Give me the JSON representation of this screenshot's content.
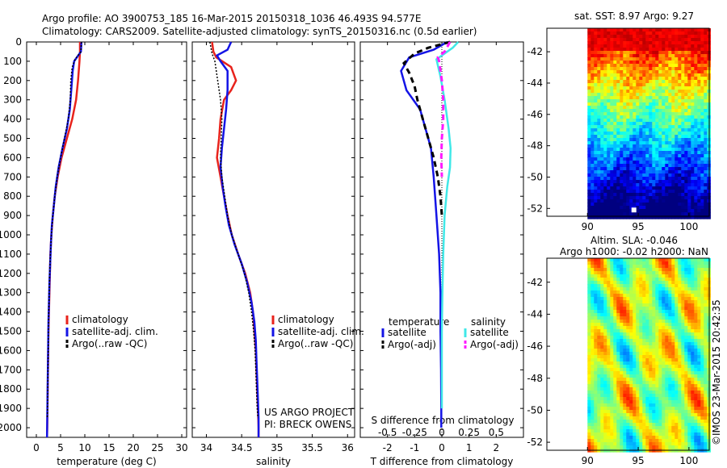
{
  "header": {
    "line1": "Argo profile: AO 3900753_185 16-Mar-2015 20150318_1036 46.493S 94.577E",
    "line2": "Climatology: CARS2009. Satellite-adjusted climatology: synTS_20150316.nc (0.5d earlier)"
  },
  "colors": {
    "climatology": "#e8231c",
    "satellite": "#1414e6",
    "argo": "#000000",
    "satellite_s": "#40e8e8",
    "argo_s": "#ff1aff"
  },
  "chart_data": [
    {
      "type": "line",
      "name": "temperature-panel",
      "xlabel": "temperature (deg C)",
      "xticks": [
        "0",
        "5",
        "10",
        "15",
        "20",
        "25",
        "30"
      ],
      "xlim": [
        -2,
        31
      ],
      "ylim": [
        0,
        2050
      ],
      "yticks": [
        "0",
        "100",
        "200",
        "300",
        "400",
        "500",
        "600",
        "700",
        "800",
        "900",
        "1000",
        "1100",
        "1200",
        "1300",
        "1400",
        "1500",
        "1600",
        "1700",
        "1800",
        "1900",
        "2000"
      ],
      "legend": [
        "climatology",
        "satellite-adj. clim.",
        "Argo(..raw -QC)"
      ],
      "series": [
        {
          "name": "climatology",
          "color": "#e8231c",
          "points": [
            [
              9.0,
              0
            ],
            [
              9.0,
              50
            ],
            [
              8.9,
              100
            ],
            [
              8.6,
              200
            ],
            [
              8.2,
              300
            ],
            [
              7.4,
              400
            ],
            [
              6.3,
              500
            ],
            [
              5.2,
              600
            ],
            [
              4.4,
              700
            ],
            [
              3.8,
              800
            ],
            [
              3.4,
              900
            ],
            [
              3.1,
              1000
            ],
            [
              2.9,
              1100
            ],
            [
              2.8,
              1200
            ],
            [
              2.7,
              1300
            ],
            [
              2.6,
              1400
            ],
            [
              2.5,
              1500
            ],
            [
              2.45,
              1600
            ],
            [
              2.4,
              1700
            ],
            [
              2.35,
              1800
            ],
            [
              2.3,
              1900
            ],
            [
              2.25,
              2000
            ],
            [
              2.2,
              2050
            ]
          ]
        },
        {
          "name": "satellite-adj. clim.",
          "color": "#1414e6",
          "points": [
            [
              9.3,
              0
            ],
            [
              9.2,
              50
            ],
            [
              7.8,
              100
            ],
            [
              7.5,
              150
            ],
            [
              7.2,
              250
            ],
            [
              6.9,
              350
            ],
            [
              6.3,
              450
            ],
            [
              5.4,
              550
            ],
            [
              4.6,
              650
            ],
            [
              4.0,
              750
            ],
            [
              3.6,
              850
            ],
            [
              3.2,
              950
            ],
            [
              3.0,
              1050
            ],
            [
              2.85,
              1150
            ],
            [
              2.7,
              1250
            ],
            [
              2.6,
              1350
            ],
            [
              2.5,
              1450
            ],
            [
              2.45,
              1550
            ],
            [
              2.4,
              1650
            ],
            [
              2.35,
              1750
            ],
            [
              2.3,
              1850
            ],
            [
              2.25,
              1950
            ],
            [
              2.2,
              2050
            ]
          ]
        },
        {
          "name": "Argo(..raw -QC)",
          "color": "#000000",
          "points": [
            [
              9.3,
              0
            ],
            [
              9.2,
              50
            ],
            [
              8.0,
              90
            ],
            [
              7.4,
              130
            ],
            [
              7.1,
              200
            ],
            [
              7.0,
              300
            ],
            [
              6.6,
              400
            ],
            [
              5.8,
              500
            ],
            [
              5.0,
              600
            ],
            [
              4.3,
              700
            ],
            [
              3.8,
              800
            ],
            [
              3.4,
              900
            ],
            [
              3.1,
              1000
            ],
            [
              2.9,
              1100
            ],
            [
              2.75,
              1200
            ],
            [
              2.65,
              1300
            ],
            [
              2.55,
              1400
            ],
            [
              2.5,
              1500
            ],
            [
              2.45,
              1600
            ],
            [
              2.4,
              1700
            ],
            [
              2.35,
              1800
            ],
            [
              2.3,
              1900
            ],
            [
              2.25,
              1950
            ]
          ]
        }
      ]
    },
    {
      "type": "line",
      "name": "salinity-panel",
      "xlabel": "salinity",
      "xticks": [
        "34",
        "34.5",
        "35",
        "35.5",
        "36"
      ],
      "xlim": [
        33.8,
        36.1
      ],
      "ylim": [
        0,
        2050
      ],
      "legend": [
        "climatology",
        "satellite-adj. clim.",
        "Argo(..raw -QC)"
      ],
      "series": [
        {
          "name": "climatology",
          "color": "#e8231c",
          "points": [
            [
              34.08,
              0
            ],
            [
              34.1,
              50
            ],
            [
              34.14,
              80
            ],
            [
              34.35,
              130
            ],
            [
              34.42,
              200
            ],
            [
              34.35,
              250
            ],
            [
              34.25,
              300
            ],
            [
              34.2,
              400
            ],
            [
              34.18,
              500
            ],
            [
              34.15,
              600
            ],
            [
              34.2,
              700
            ],
            [
              34.25,
              800
            ],
            [
              34.3,
              900
            ],
            [
              34.36,
              1000
            ],
            [
              34.45,
              1100
            ],
            [
              34.55,
              1200
            ],
            [
              34.62,
              1300
            ],
            [
              34.66,
              1400
            ],
            [
              34.68,
              1500
            ],
            [
              34.7,
              1600
            ],
            [
              34.71,
              1700
            ],
            [
              34.72,
              1800
            ],
            [
              34.73,
              1900
            ],
            [
              34.74,
              2000
            ],
            [
              34.74,
              2050
            ]
          ]
        },
        {
          "name": "satellite-adj. clim.",
          "color": "#1414e6",
          "points": [
            [
              34.35,
              0
            ],
            [
              34.3,
              40
            ],
            [
              34.15,
              70
            ],
            [
              34.2,
              100
            ],
            [
              34.3,
              150
            ],
            [
              34.3,
              250
            ],
            [
              34.28,
              350
            ],
            [
              34.25,
              450
            ],
            [
              34.22,
              550
            ],
            [
              34.2,
              650
            ],
            [
              34.23,
              750
            ],
            [
              34.27,
              850
            ],
            [
              34.32,
              950
            ],
            [
              34.4,
              1050
            ],
            [
              34.5,
              1150
            ],
            [
              34.58,
              1250
            ],
            [
              34.64,
              1350
            ],
            [
              34.68,
              1450
            ],
            [
              34.7,
              1550
            ],
            [
              34.71,
              1650
            ],
            [
              34.72,
              1750
            ],
            [
              34.73,
              1850
            ],
            [
              34.74,
              1950
            ],
            [
              34.74,
              2050
            ]
          ]
        },
        {
          "name": "Argo(..raw -QC)",
          "color": "#000000",
          "points": [
            [
              34.05,
              0
            ],
            [
              34.08,
              60
            ],
            [
              34.12,
              100
            ],
            [
              34.16,
              200
            ],
            [
              34.2,
              300
            ],
            [
              34.22,
              400
            ],
            [
              34.21,
              500
            ],
            [
              34.2,
              600
            ],
            [
              34.22,
              700
            ],
            [
              34.26,
              800
            ],
            [
              34.3,
              900
            ],
            [
              34.36,
              1000
            ],
            [
              34.45,
              1100
            ],
            [
              34.54,
              1200
            ],
            [
              34.6,
              1300
            ],
            [
              34.64,
              1400
            ],
            [
              34.67,
              1500
            ],
            [
              34.69,
              1600
            ],
            [
              34.7,
              1700
            ],
            [
              34.71,
              1800
            ],
            [
              34.72,
              1900
            ],
            [
              34.73,
              1950
            ]
          ]
        }
      ],
      "annotations": [
        "US ARGO PROJECT",
        "PI: BRECK OWENS"
      ]
    },
    {
      "type": "line",
      "name": "difference-panel",
      "xlabel": "T difference from climatology",
      "x2label": "S difference from climatology",
      "xticks": [
        "-2",
        "-1",
        "0",
        "1",
        "2"
      ],
      "x2ticks": [
        "-0.5",
        "-0.25",
        "0",
        "0.25",
        "0.5"
      ],
      "xlim": [
        -3,
        3
      ],
      "ylim": [
        0,
        2050
      ],
      "legend_titles": [
        "temperature",
        "salinity"
      ],
      "legend": [
        "satellite",
        "Argo(-adj)",
        "satellite",
        "Argo(-adj)"
      ],
      "series": [
        {
          "name": "temperature satellite",
          "color": "#1414e6",
          "points": [
            [
              0.2,
              0
            ],
            [
              -0.3,
              40
            ],
            [
              -1.2,
              80
            ],
            [
              -1.5,
              150
            ],
            [
              -1.3,
              250
            ],
            [
              -0.8,
              350
            ],
            [
              -0.6,
              450
            ],
            [
              -0.4,
              550
            ],
            [
              -0.3,
              700
            ],
            [
              -0.2,
              900
            ],
            [
              -0.1,
              1100
            ],
            [
              -0.05,
              1300
            ],
            [
              -0.05,
              1500
            ],
            [
              -0.03,
              1700
            ],
            [
              -0.02,
              1900
            ],
            [
              -0.02,
              2000
            ]
          ]
        },
        {
          "name": "temperature Argo(-adj)",
          "color": "#000000",
          "dash": true,
          "points": [
            [
              0.3,
              0
            ],
            [
              -0.5,
              30
            ],
            [
              -1.0,
              60
            ],
            [
              -1.4,
              110
            ],
            [
              -1.2,
              160
            ],
            [
              -1.0,
              230
            ],
            [
              -0.9,
              300
            ],
            [
              -0.7,
              400
            ],
            [
              -0.5,
              500
            ],
            [
              -0.3,
              600
            ],
            [
              -0.15,
              700
            ],
            [
              -0.05,
              800
            ],
            [
              0.0,
              900
            ]
          ]
        },
        {
          "name": "salinity satellite",
          "color": "#40e8e8",
          "points": [
            [
              0.6,
              0
            ],
            [
              0.4,
              30
            ],
            [
              0.1,
              60
            ],
            [
              -0.2,
              90
            ],
            [
              -0.05,
              180
            ],
            [
              0.1,
              300
            ],
            [
              0.25,
              450
            ],
            [
              0.32,
              550
            ],
            [
              0.3,
              650
            ],
            [
              0.2,
              750
            ],
            [
              0.1,
              900
            ],
            [
              0.05,
              1100
            ],
            [
              0.02,
              1300
            ],
            [
              0.0,
              1500
            ],
            [
              0.0,
              1700
            ],
            [
              0.0,
              1900
            ]
          ]
        },
        {
          "name": "salinity Argo(-adj)",
          "color": "#ff1aff",
          "dash": true,
          "points": [
            [
              0.3,
              0
            ],
            [
              0.1,
              50
            ],
            [
              -0.15,
              80
            ],
            [
              -0.1,
              100
            ],
            [
              0.0,
              200
            ],
            [
              0.05,
              300
            ],
            [
              0.05,
              400
            ],
            [
              0.0,
              500
            ],
            [
              -0.02,
              600
            ],
            [
              0.0,
              700
            ]
          ]
        }
      ]
    },
    {
      "type": "heatmap",
      "name": "sst-map",
      "title": "sat. SST: 8.97 Argo: 9.27",
      "xticks": [
        "90",
        "95",
        "100"
      ],
      "yticks": [
        "-42",
        "-44",
        "-46",
        "-48",
        "-50",
        "-52"
      ],
      "xlim": [
        86,
        102
      ],
      "ylim": [
        -52.5,
        -40.5
      ]
    },
    {
      "type": "heatmap",
      "name": "sla-map",
      "title_lines": [
        "Altim. SLA: -0.046",
        "Argo h1000: -0.02 h2000: NaN"
      ],
      "xticks": [
        "90",
        "95",
        "100"
      ],
      "yticks": [
        "-42",
        "-44",
        "-46",
        "-48",
        "-50",
        "-52"
      ],
      "xlim": [
        86,
        102
      ],
      "ylim": [
        -52.5,
        -40.5
      ]
    }
  ],
  "credit": "©IMOS 23-Mar-2015 20:42:35"
}
